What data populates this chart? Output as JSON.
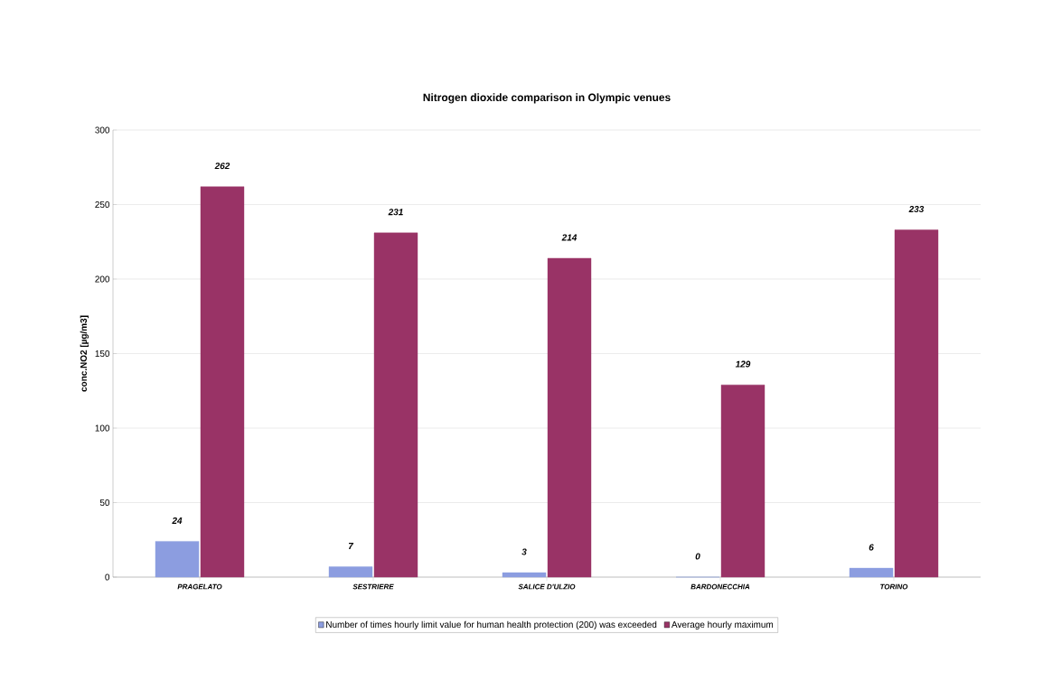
{
  "chart_data": {
    "type": "bar",
    "title": "Nitrogen dioxide comparison in Olympic venues",
    "ylabel": "conc.NO2 [µg/m3]",
    "categories": [
      "PRAGELATO",
      "SESTRIERE",
      "SALICE D'ULZIO",
      "BARDONECCHIA",
      "TORINO"
    ],
    "series": [
      {
        "name": "Number of times hourly limit value for human health protection (200) was exceeded",
        "color": "#8c9de0",
        "values": [
          24,
          7,
          3,
          0,
          6
        ]
      },
      {
        "name": "Average hourly maximum",
        "color": "#993366",
        "values": [
          262,
          231,
          214,
          129,
          233
        ]
      }
    ],
    "ylim": [
      0,
      300
    ],
    "yticks": [
      0,
      50,
      100,
      150,
      200,
      250,
      300
    ],
    "grid": "y",
    "legend": "bottom",
    "data_labels": true
  }
}
